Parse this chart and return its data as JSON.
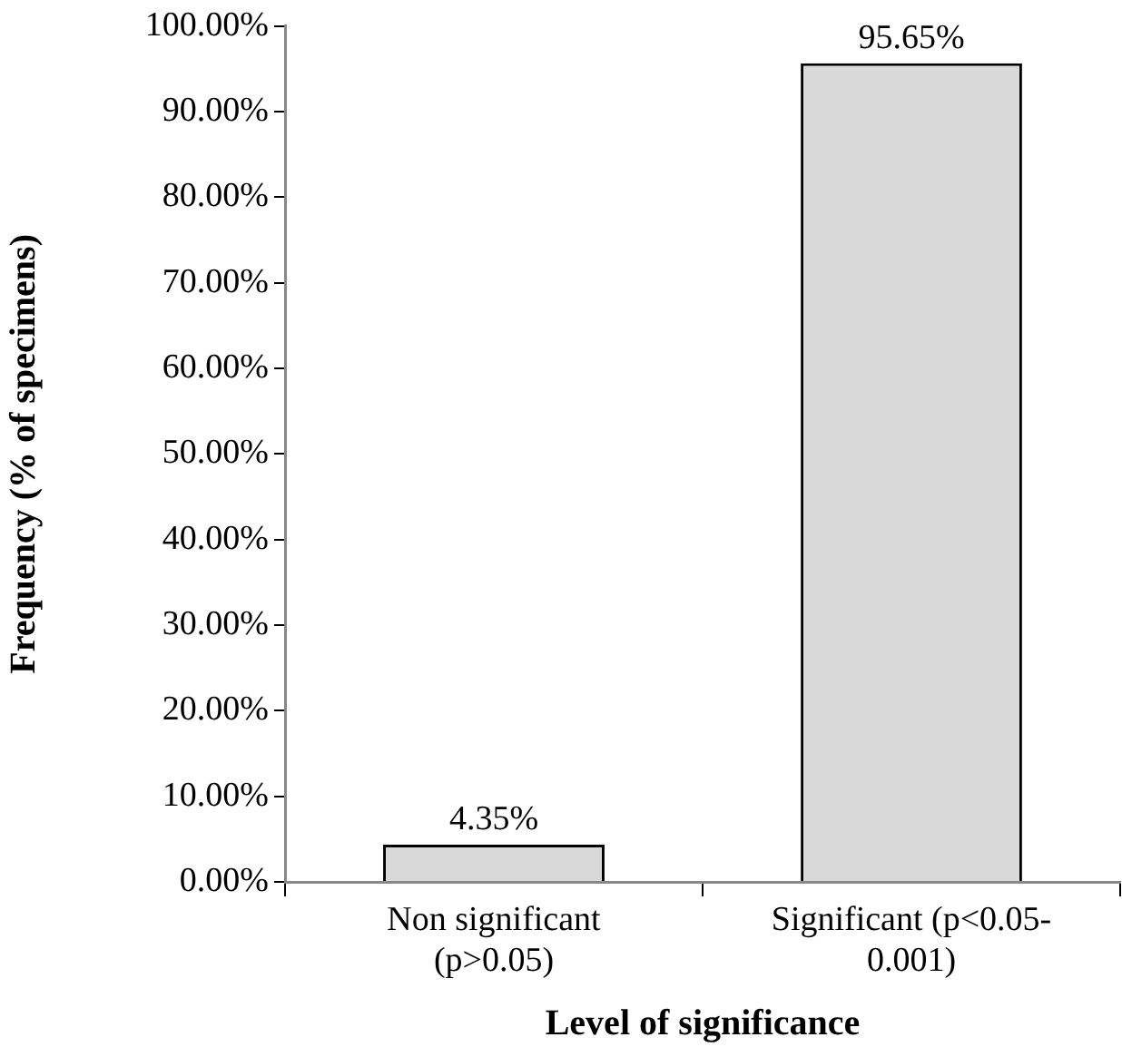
{
  "chart_data": {
    "type": "bar",
    "xlabel": "Level of significance",
    "ylabel": "Frequency (% of specimens)",
    "categories": [
      "Non significant\n(p>0.05)",
      "Significant (p<0.05-\n0.001)"
    ],
    "values": [
      4.35,
      95.65
    ],
    "value_labels": [
      "4.35%",
      "95.65%"
    ],
    "color": "#d9d9d9",
    "ylim": [
      0,
      100
    ],
    "yticks": [
      {
        "value": 0,
        "label": "0.00%"
      },
      {
        "value": 10,
        "label": "10.00%"
      },
      {
        "value": 20,
        "label": "20.00%"
      },
      {
        "value": 30,
        "label": "30.00%"
      },
      {
        "value": 40,
        "label": "40.00%"
      },
      {
        "value": 50,
        "label": "50.00%"
      },
      {
        "value": 60,
        "label": "60.00%"
      },
      {
        "value": 70,
        "label": "70.00%"
      },
      {
        "value": 80,
        "label": "80.00%"
      },
      {
        "value": 90,
        "label": "90.00%"
      },
      {
        "value": 100,
        "label": "100.00%"
      }
    ],
    "grid": false,
    "legend": false
  }
}
